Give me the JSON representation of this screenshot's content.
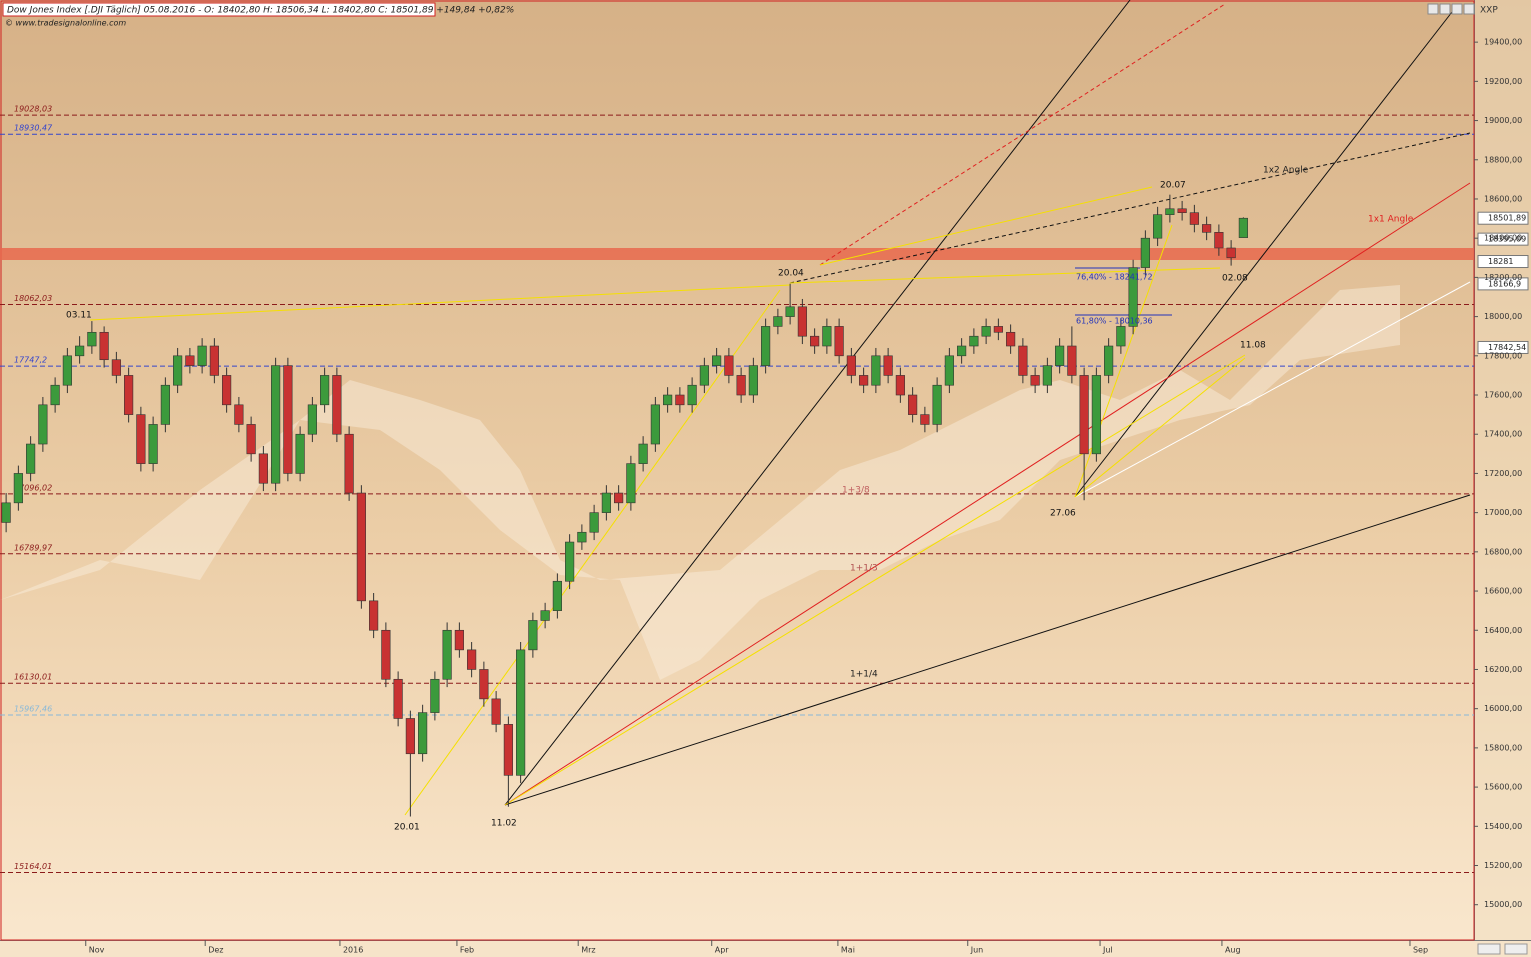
{
  "chart_data": {
    "type": "candlestick",
    "title": "Dow Jones Index [.DJI Täglich] 05.08.2016 - O: 18402,80 H: 18506,34 L: 18402,80 C: 18501,89 +149,84 +0,82%",
    "source": "© www.tradesignalonline.com",
    "symbol_tag": "XXP",
    "up_color": "#3c9a3c",
    "down_color": "#c83232",
    "xlim": [
      0,
      240
    ],
    "ylim": [
      14820,
      19615
    ],
    "xticks": [
      {
        "value": 14,
        "label": "Nov"
      },
      {
        "value": 33.5,
        "label": "Dez"
      },
      {
        "value": 55.5,
        "label": "2016"
      },
      {
        "value": 74.6,
        "label": "Feb"
      },
      {
        "value": 94.4,
        "label": "Mrz"
      },
      {
        "value": 116.2,
        "label": "Apr"
      },
      {
        "value": 136.8,
        "label": "Mai"
      },
      {
        "value": 158,
        "label": "Jun"
      },
      {
        "value": 179.6,
        "label": "Jul"
      },
      {
        "value": 199.5,
        "label": "Aug"
      },
      {
        "value": 230.2,
        "label": "Sep"
      }
    ],
    "yticks": [
      {
        "value": 15000,
        "label": "15000,00"
      },
      {
        "value": 15200,
        "label": "15200,00"
      },
      {
        "value": 15400,
        "label": "15400,00"
      },
      {
        "value": 15600,
        "label": "15600,00"
      },
      {
        "value": 15800,
        "label": "15800,00"
      },
      {
        "value": 16000,
        "label": "16000,00"
      },
      {
        "value": 16200,
        "label": "16200,00"
      },
      {
        "value": 16400,
        "label": "16400,00"
      },
      {
        "value": 16600,
        "label": "16600,00"
      },
      {
        "value": 16800,
        "label": "16800,00"
      },
      {
        "value": 17000,
        "label": "17000,00"
      },
      {
        "value": 17200,
        "label": "17200,00"
      },
      {
        "value": 17400,
        "label": "17400,00"
      },
      {
        "value": 17600,
        "label": "17600,00"
      },
      {
        "value": 17800,
        "label": "17800,00"
      },
      {
        "value": 18000,
        "label": "18000,00"
      },
      {
        "value": 18200,
        "label": "18200,00"
      },
      {
        "value": 18400,
        "label": "18400,00"
      },
      {
        "value": 18600,
        "label": "18600,00"
      },
      {
        "value": 18800,
        "label": "18800,00"
      },
      {
        "value": 19000,
        "label": "19000,00"
      },
      {
        "value": 19200,
        "label": "19200,00"
      },
      {
        "value": 19400,
        "label": "19400,00"
      }
    ],
    "x": [
      1,
      3,
      5,
      7,
      9,
      11,
      13,
      15,
      17,
      19,
      21,
      23,
      25,
      27,
      29,
      31,
      33,
      35,
      37,
      39,
      41,
      43,
      45,
      47,
      49,
      51,
      53,
      55,
      57,
      59,
      61,
      63,
      65,
      67,
      69,
      71,
      73,
      75,
      77,
      79,
      81,
      83,
      85,
      87,
      89,
      91,
      93,
      95,
      97,
      99,
      101,
      103,
      105,
      107,
      109,
      111,
      113,
      115,
      117,
      119,
      121,
      123,
      125,
      127,
      129,
      131,
      133,
      135,
      137,
      139,
      141,
      143,
      145,
      147,
      149,
      151,
      153,
      155,
      157,
      159,
      161,
      163,
      165,
      167,
      169,
      171,
      173,
      175,
      177,
      179,
      181,
      183,
      185,
      187,
      189,
      191,
      193,
      195,
      197,
      199,
      201,
      203
    ],
    "open": [
      16950,
      17050,
      17200,
      17350,
      17550,
      17650,
      17800,
      17850,
      17920,
      17780,
      17700,
      17500,
      17250,
      17450,
      17650,
      17800,
      17750,
      17850,
      17700,
      17550,
      17450,
      17300,
      17150,
      17750,
      17200,
      17400,
      17550,
      17700,
      17400,
      17100,
      16550,
      16400,
      16150,
      15950,
      15770,
      15980,
      16150,
      16400,
      16300,
      16200,
      16050,
      15920,
      15660,
      16300,
      16450,
      16500,
      16650,
      16850,
      16900,
      17000,
      17100,
      17050,
      17250,
      17350,
      17550,
      17600,
      17550,
      17650,
      17750,
      17800,
      17700,
      17600,
      17750,
      17950,
      18000,
      18050,
      17900,
      17850,
      17950,
      17800,
      17700,
      17650,
      17800,
      17700,
      17600,
      17500,
      17450,
      17650,
      17800,
      17850,
      17900,
      17950,
      17920,
      17850,
      17700,
      17650,
      17750,
      17850,
      17700,
      17300,
      17700,
      17850,
      17950,
      18250,
      18400,
      18520,
      18550,
      18530,
      18470,
      18430,
      18350,
      18402.8
    ],
    "high": [
      17100,
      17240,
      17390,
      17590,
      17690,
      17840,
      17900,
      17977,
      17950,
      17820,
      17740,
      17540,
      17490,
      17690,
      17840,
      17840,
      17890,
      17890,
      17740,
      17590,
      17490,
      17340,
      17790,
      17790,
      17440,
      17590,
      17740,
      17740,
      17440,
      17140,
      16590,
      16440,
      16190,
      15990,
      16020,
      16190,
      16440,
      16440,
      16340,
      16240,
      16090,
      15960,
      16340,
      16490,
      16540,
      16690,
      16890,
      16940,
      17040,
      17140,
      17140,
      17290,
      17390,
      17590,
      17640,
      17640,
      17690,
      17790,
      17840,
      17840,
      17740,
      17790,
      17990,
      18040,
      18168,
      18090,
      17940,
      17990,
      17990,
      17840,
      17740,
      17840,
      17840,
      17740,
      17640,
      17540,
      17690,
      17840,
      17890,
      17940,
      17990,
      17990,
      17960,
      17890,
      17740,
      17790,
      17890,
      17950,
      17740,
      17740,
      17890,
      17990,
      18290,
      18440,
      18560,
      18622,
      18590,
      18570,
      18510,
      18470,
      18390,
      18506.34
    ],
    "low": [
      16900,
      17010,
      17160,
      17310,
      17510,
      17610,
      17760,
      17810,
      17740,
      17660,
      17460,
      17210,
      17210,
      17410,
      17610,
      17710,
      17710,
      17660,
      17510,
      17410,
      17260,
      17110,
      17110,
      17160,
      17160,
      17360,
      17510,
      17360,
      17060,
      16510,
      16360,
      16110,
      15910,
      15450,
      15730,
      15940,
      16110,
      16260,
      16160,
      16010,
      15880,
      15500,
      15620,
      16260,
      16410,
      16460,
      16610,
      16810,
      16860,
      16960,
      17010,
      17010,
      17210,
      17310,
      17510,
      17510,
      17510,
      17610,
      17710,
      17660,
      17560,
      17560,
      17710,
      17910,
      17960,
      17860,
      17810,
      17810,
      17760,
      17660,
      17610,
      17610,
      17660,
      17560,
      17460,
      17410,
      17410,
      17610,
      17760,
      17810,
      17860,
      17880,
      17810,
      17660,
      17610,
      17610,
      17710,
      17660,
      17063,
      17260,
      17660,
      17810,
      17910,
      18210,
      18360,
      18480,
      18490,
      18430,
      18390,
      18310,
      18260,
      18402.8
    ],
    "close": [
      17050,
      17200,
      17350,
      17550,
      17650,
      17800,
      17850,
      17920,
      17780,
      17700,
      17500,
      17250,
      17450,
      17650,
      17800,
      17750,
      17850,
      17700,
      17550,
      17450,
      17300,
      17150,
      17750,
      17200,
      17400,
      17550,
      17700,
      17400,
      17100,
      16550,
      16400,
      16150,
      15950,
      15770,
      15980,
      16150,
      16400,
      16300,
      16200,
      16050,
      15920,
      15660,
      16300,
      16450,
      16500,
      16650,
      16850,
      16900,
      17000,
      17100,
      17050,
      17250,
      17350,
      17550,
      17600,
      17550,
      17650,
      17750,
      17800,
      17700,
      17600,
      17750,
      17950,
      18000,
      18050,
      17900,
      17850,
      17950,
      17800,
      17700,
      17650,
      17800,
      17700,
      17600,
      17500,
      17450,
      17650,
      17800,
      17850,
      17900,
      17950,
      17920,
      17850,
      17700,
      17650,
      17750,
      17850,
      17700,
      17300,
      17700,
      17850,
      17950,
      18250,
      18400,
      18520,
      18550,
      18530,
      18470,
      18430,
      18350,
      18300,
      18501.89
    ],
    "levels": [
      {
        "value": 19028.03,
        "label": "19028,03",
        "color": "#8b1a1a"
      },
      {
        "value": 18930.47,
        "label": "18930,47",
        "color": "#3344cc"
      },
      {
        "value": 18062.03,
        "label": "18062,03",
        "color": "#8b1a1a"
      },
      {
        "value": 17747.2,
        "label": "17747,2",
        "color": "#3344cc"
      },
      {
        "value": 17096.02,
        "label": "17096,02",
        "color": "#8b1a1a"
      },
      {
        "value": 16789.97,
        "label": "16789,97",
        "color": "#8b1a1a"
      },
      {
        "value": 16130.01,
        "label": "16130,01",
        "color": "#8b1a1a"
      },
      {
        "value": 15967.46,
        "label": "15967,46",
        "color": "#88b8d8"
      },
      {
        "value": 15164.01,
        "label": "15164,01",
        "color": "#8b1a1a"
      }
    ],
    "price_markers": [
      {
        "value": 18501.89,
        "label": "18501,89"
      },
      {
        "value": 18395.09,
        "label": "18395,09"
      },
      {
        "value": 18281,
        "label": "18281"
      },
      {
        "value": 18166.9,
        "label": "18166,9"
      },
      {
        "value": 17842.54,
        "label": "17842,54"
      }
    ],
    "annotations": [
      "03.11",
      "20.04",
      "20.01",
      "11.02",
      "27.06",
      "20.07",
      "02.08",
      "11.08",
      "1x2 Angle",
      "1x1 Angle",
      "1+3/8",
      "1+1/3",
      "1+1/4",
      "76,40% - 18241,72",
      "61,80% - 18010,36"
    ]
  }
}
